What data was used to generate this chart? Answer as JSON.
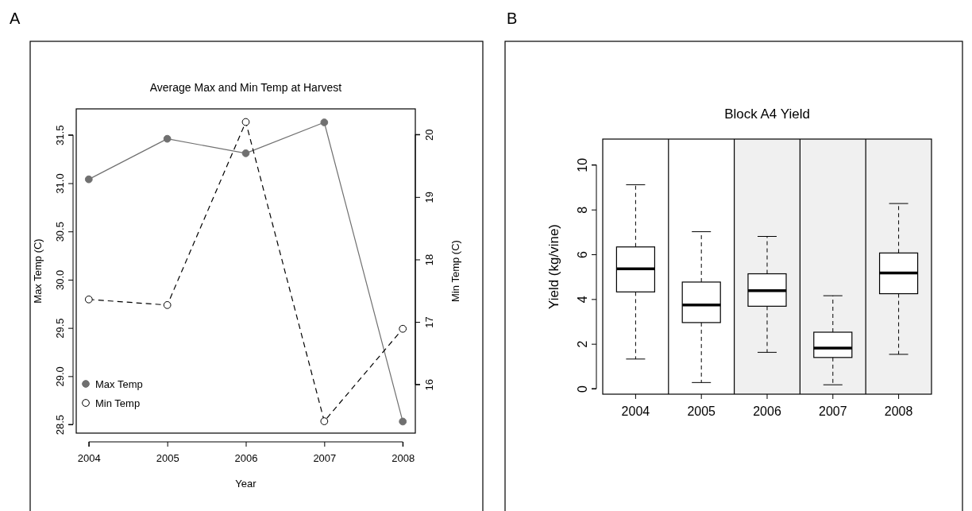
{
  "chart_data": [
    {
      "type": "line",
      "title": "Average Max and Min Temp at Harvest",
      "xlabel": "Year",
      "ylabel": "Max Temp (C)",
      "y2label": "Min Temp (C)",
      "annotations": [
        "A"
      ],
      "x": [
        2004,
        2005,
        2006,
        2007,
        2008
      ],
      "xlim": [
        2003.84,
        2008.16
      ],
      "xticks": [
        2004,
        2005,
        2006,
        2007,
        2008
      ],
      "ylim": [
        28.41,
        31.77
      ],
      "yticks": [
        {
          "value": 28.5,
          "label": "28.5"
        },
        {
          "value": 29,
          "label": "29.0"
        },
        {
          "value": 29.5,
          "label": "29.5"
        },
        {
          "value": 30,
          "label": "30.0"
        },
        {
          "value": 30.5,
          "label": "30.5"
        },
        {
          "value": 31,
          "label": "31.0"
        },
        {
          "value": 31.5,
          "label": "31.5"
        }
      ],
      "y2lim": [
        15.22,
        20.41
      ],
      "y2ticks": [
        16,
        17,
        18,
        19,
        20
      ],
      "series": [
        {
          "name": "Max Temp",
          "color": "#707070",
          "values": [
            31.04,
            31.46,
            31.31,
            31.63,
            28.53
          ],
          "line_style": "solid",
          "marker": "circle"
        },
        {
          "name": "Min Temp",
          "color": "#000000",
          "values": [
            17.36,
            17.27,
            20.2,
            15.41,
            16.89
          ],
          "axis": "y2",
          "line_style": "dashed",
          "marker": "circle"
        }
      ],
      "legend": "bottom left",
      "grid": false
    },
    {
      "type": "box",
      "title": "Block A4 Yield",
      "ylabel": "Yield (kg/vine)",
      "annotations": [
        "B"
      ],
      "categories": [
        "2004",
        "2005",
        "2006",
        "2007",
        "2008"
      ],
      "ylim": [
        -0.25,
        11.15
      ],
      "yticks": [
        0,
        2,
        4,
        6,
        8,
        10
      ],
      "boxes": [
        {
          "low": 1.32,
          "q1": 4.32,
          "median": 5.35,
          "q3": 6.33,
          "high": 9.11
        },
        {
          "low": 0.27,
          "q1": 2.95,
          "median": 3.74,
          "q3": 4.76,
          "high": 7.01
        },
        {
          "low": 1.62,
          "q1": 3.68,
          "median": 4.38,
          "q3": 5.13,
          "high": 6.8
        },
        {
          "low": 0.17,
          "q1": 1.39,
          "median": 1.81,
          "q3": 2.52,
          "high": 4.15
        },
        {
          "low": 1.53,
          "q1": 4.24,
          "median": 5.17,
          "q3": 6.06,
          "high": 8.27
        }
      ],
      "bands": [
        {
          "axis": "x",
          "from": "2006",
          "to": "2008",
          "color": "#f0f0f0"
        }
      ],
      "grid": false
    }
  ]
}
